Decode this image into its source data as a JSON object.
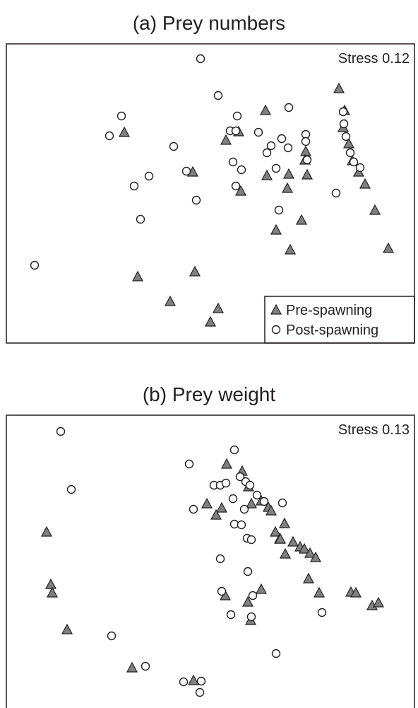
{
  "chart_data": [
    {
      "type": "scatter",
      "title": "(a) Prey numbers",
      "annotation": "Stress 0.12",
      "legend": {
        "placement": "bottom-right",
        "entries": [
          {
            "label": "Pre-spawning",
            "marker": "filled-triangle"
          },
          {
            "label": "Post-spawning",
            "marker": "open-circle"
          }
        ]
      },
      "axes_visible": false,
      "series": [
        {
          "name": "Pre-spawning",
          "marker": "triangle",
          "color": "#808080",
          "points": [
            [
              480,
              125
            ],
            [
              376,
              156
            ],
            [
              488,
              156
            ],
            [
              176,
              187
            ],
            [
              338,
              186
            ],
            [
              320,
              198
            ],
            [
              486,
              180
            ],
            [
              433,
              214
            ],
            [
              494,
              203
            ],
            [
              432,
              226
            ],
            [
              499,
              227
            ],
            [
              409,
              246
            ],
            [
              378,
              248
            ],
            [
              435,
              247
            ],
            [
              273,
              243
            ],
            [
              508,
              243
            ],
            [
              407,
              266
            ],
            [
              341,
              270
            ],
            [
              517,
              260
            ],
            [
              531,
              297
            ],
            [
              427,
              311
            ],
            [
              391,
              325
            ],
            [
              411,
              353
            ],
            [
              550,
              351
            ],
            [
              195,
              391
            ],
            [
              276,
              384
            ],
            [
              241,
              426
            ],
            [
              309,
              436
            ],
            [
              298,
              455
            ]
          ]
        },
        {
          "name": "Post-spawning",
          "marker": "circle",
          "color": "#ffffff",
          "points": [
            [
              284,
              83
            ],
            [
              309,
              135
            ],
            [
              409,
              152
            ],
            [
              172,
              164
            ],
            [
              336,
              164
            ],
            [
              155,
              192
            ],
            [
              326,
              185
            ],
            [
              334,
              185
            ],
            [
              366,
              187
            ],
            [
              433,
              190
            ],
            [
              486,
              158
            ],
            [
              487,
              175
            ],
            [
              490,
              193
            ],
            [
              399,
              196
            ],
            [
              408,
              209
            ],
            [
              384,
              206
            ],
            [
              378,
              216
            ],
            [
              433,
              200
            ],
            [
              246,
              207
            ],
            [
              330,
              229
            ],
            [
              342,
              240
            ],
            [
              435,
              226
            ],
            [
              264,
              242
            ],
            [
              211,
              249
            ],
            [
              391,
              238
            ],
            [
              496,
              216
            ],
            [
              501,
              229
            ],
            [
              510,
              237
            ],
            [
              190,
              263
            ],
            [
              334,
              263
            ],
            [
              278,
              283
            ],
            [
              476,
              273
            ],
            [
              395,
              297
            ],
            [
              199,
              310
            ],
            [
              49,
              375
            ]
          ]
        }
      ]
    },
    {
      "type": "scatter",
      "title": "(b) Prey weight",
      "annotation": "Stress 0.13",
      "axes_visible": false,
      "series": [
        {
          "name": "Pre-spawning",
          "marker": "triangle",
          "color": "#808080",
          "points": [
            [
              321,
              656
            ],
            [
              343,
              666
            ],
            [
              352,
              688
            ],
            [
              293,
              712
            ],
            [
              314,
              718
            ],
            [
              306,
              728
            ],
            [
              356,
              712
            ],
            [
              370,
              708
            ],
            [
              380,
              717
            ],
            [
              384,
              722
            ],
            [
              403,
              740
            ],
            [
              390,
              752
            ],
            [
              396,
              762
            ],
            [
              415,
              766
            ],
            [
              425,
              773
            ],
            [
              431,
              776
            ],
            [
              439,
              782
            ],
            [
              447,
              788
            ],
            [
              397,
              762
            ],
            [
              404,
              783
            ],
            [
              437,
              818
            ],
            [
              452,
              838
            ],
            [
              66,
              752
            ],
            [
              72,
              826
            ],
            [
              74,
              838
            ],
            [
              95,
              890
            ],
            [
              319,
              842
            ],
            [
              370,
              833
            ],
            [
              351,
              851
            ],
            [
              355,
              877
            ],
            [
              497,
              837
            ],
            [
              504,
              838
            ],
            [
              527,
              856
            ],
            [
              536,
              852
            ],
            [
              187,
              944
            ],
            [
              274,
              962
            ]
          ]
        },
        {
          "name": "Post-spawning",
          "marker": "circle",
          "color": "#ffffff",
          "points": [
            [
              86,
              610
            ],
            [
              332,
              636
            ],
            [
              268,
              656
            ],
            [
              101,
              692
            ],
            [
              303,
              686
            ],
            [
              312,
              686
            ],
            [
              320,
              683
            ],
            [
              340,
              674
            ],
            [
              348,
              681
            ],
            [
              330,
              705
            ],
            [
              354,
              686
            ],
            [
              364,
              700
            ],
            [
              374,
              709
            ],
            [
              346,
              720
            ],
            [
              400,
              711
            ],
            [
              274,
              720
            ],
            [
              332,
              741
            ],
            [
              342,
              742
            ],
            [
              350,
              761
            ],
            [
              356,
              763
            ],
            [
              312,
              790
            ],
            [
              351,
              808
            ],
            [
              314,
              836
            ],
            [
              358,
              842
            ],
            [
              356,
              872
            ],
            [
              327,
              869
            ],
            [
              456,
              866
            ],
            [
              158,
              899
            ],
            [
              391,
              924
            ],
            [
              206,
              942
            ],
            [
              260,
              964
            ],
            [
              285,
              963
            ],
            [
              283,
              979
            ]
          ]
        }
      ]
    }
  ]
}
